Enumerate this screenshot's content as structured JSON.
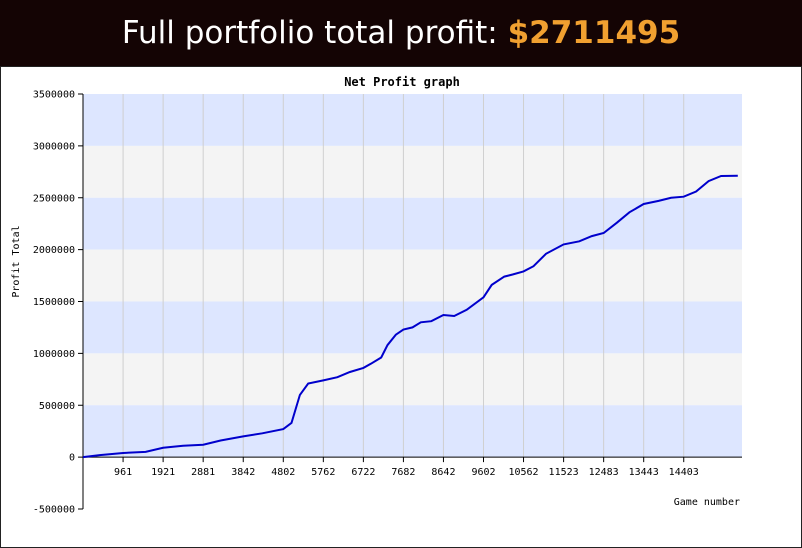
{
  "header": {
    "label": "Full portfolio total profit:",
    "amount": "$2711495"
  },
  "colors": {
    "header_bg": "#140404",
    "amount": "#f0a030",
    "band_blue": "#dde6ff",
    "band_grey": "#f4f4f4",
    "line": "#0000cc"
  },
  "chart_data": {
    "type": "line",
    "title": "Net Profit graph",
    "xlabel": "Game number",
    "ylabel": "Profit Total",
    "xlim": [
      0,
      15800
    ],
    "ylim": [
      -500000,
      3500000
    ],
    "grid": true,
    "x_ticks": [
      0,
      961,
      1921,
      2881,
      3842,
      4802,
      5762,
      6722,
      7682,
      8642,
      9602,
      10562,
      11523,
      12483,
      13443,
      14403
    ],
    "x_tick_labels": [
      "",
      "961",
      "1921",
      "2881",
      "3842",
      "4802",
      "5762",
      "6722",
      "7682",
      "8642",
      "9602",
      "10562",
      "11523",
      "12483",
      "13443",
      "14403"
    ],
    "y_ticks": [
      -500000,
      0,
      500000,
      1000000,
      1500000,
      2000000,
      2500000,
      3000000,
      3500000
    ],
    "y_tick_labels": [
      "-500000",
      "0",
      "500000",
      "1000000",
      "1500000",
      "2000000",
      "2500000",
      "3000000",
      "3500000"
    ],
    "series": [
      {
        "x": [
          0,
          400,
          961,
          1500,
          1921,
          2400,
          2881,
          3300,
          3842,
          4300,
          4802,
          5000,
          5200,
          5400,
          5762,
          6100,
          6400,
          6722,
          6900,
          7150,
          7300,
          7500,
          7682,
          7900,
          8100,
          8350,
          8642,
          8900,
          9200,
          9602,
          9800,
          10100,
          10300,
          10562,
          10800,
          11100,
          11523,
          11900,
          12200,
          12483,
          12800,
          13100,
          13443,
          13800,
          14100,
          14403,
          14700,
          15000,
          15300,
          15700
        ],
        "y": [
          0,
          20000,
          40000,
          50000,
          90000,
          110000,
          120000,
          160000,
          200000,
          230000,
          270000,
          330000,
          600000,
          710000,
          740000,
          770000,
          820000,
          860000,
          900000,
          960000,
          1080000,
          1180000,
          1230000,
          1250000,
          1300000,
          1310000,
          1370000,
          1360000,
          1420000,
          1540000,
          1660000,
          1740000,
          1760000,
          1790000,
          1840000,
          1960000,
          2050000,
          2080000,
          2130000,
          2160000,
          2260000,
          2360000,
          2440000,
          2470000,
          2500000,
          2510000,
          2560000,
          2660000,
          2710000,
          2711495
        ]
      }
    ]
  }
}
